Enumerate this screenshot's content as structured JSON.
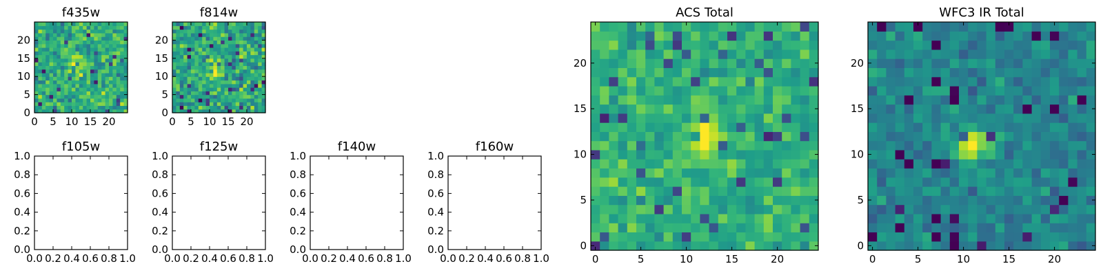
{
  "chart_data": [
    {
      "type": "heatmap",
      "title": "f435w",
      "xlim": [
        0,
        25
      ],
      "ylim": [
        0,
        25
      ],
      "xticks": [
        0,
        5,
        10,
        15,
        20
      ],
      "yticks": [
        0,
        5,
        10,
        15,
        20
      ],
      "colormap": "viridis",
      "grid_size": 25
    },
    {
      "type": "heatmap",
      "title": "f814w",
      "xlim": [
        0,
        25
      ],
      "ylim": [
        0,
        25
      ],
      "xticks": [
        0,
        5,
        10,
        15,
        20
      ],
      "yticks": [
        0,
        5,
        10,
        15,
        20
      ],
      "colormap": "viridis",
      "grid_size": 25
    },
    {
      "type": "line",
      "title": "f105w",
      "xlim": [
        0,
        1
      ],
      "ylim": [
        0,
        1
      ],
      "xticks": [
        "0.0",
        "0.2",
        "0.4",
        "0.6",
        "0.8",
        "1.0"
      ],
      "yticks": [
        "0.0",
        "0.2",
        "0.4",
        "0.6",
        "0.8",
        "1.0"
      ],
      "series": []
    },
    {
      "type": "line",
      "title": "f125w",
      "xlim": [
        0,
        1
      ],
      "ylim": [
        0,
        1
      ],
      "xticks": [
        "0.0",
        "0.2",
        "0.4",
        "0.6",
        "0.8",
        "1.0"
      ],
      "yticks": [
        "0.0",
        "0.2",
        "0.4",
        "0.6",
        "0.8",
        "1.0"
      ],
      "series": []
    },
    {
      "type": "line",
      "title": "f140w",
      "xlim": [
        0,
        1
      ],
      "ylim": [
        0,
        1
      ],
      "xticks": [
        "0.0",
        "0.2",
        "0.4",
        "0.6",
        "0.8",
        "1.0"
      ],
      "yticks": [
        "0.0",
        "0.2",
        "0.4",
        "0.6",
        "0.8",
        "1.0"
      ],
      "series": []
    },
    {
      "type": "line",
      "title": "f160w",
      "xlim": [
        0,
        1
      ],
      "ylim": [
        0,
        1
      ],
      "xticks": [
        "0.0",
        "0.2",
        "0.4",
        "0.6",
        "0.8",
        "1.0"
      ],
      "yticks": [
        "0.0",
        "0.2",
        "0.4",
        "0.6",
        "0.8",
        "1.0"
      ],
      "series": []
    },
    {
      "type": "heatmap",
      "title": "ACS Total",
      "xlim": [
        -0.5,
        24.5
      ],
      "ylim": [
        -0.5,
        24.5
      ],
      "xticks": [
        0,
        5,
        10,
        15,
        20
      ],
      "yticks": [
        0,
        5,
        10,
        15,
        20
      ],
      "colormap": "viridis",
      "grid_size": 25
    },
    {
      "type": "heatmap",
      "title": "WFC3 IR Total",
      "xlim": [
        -0.5,
        24.5
      ],
      "ylim": [
        -0.5,
        24.5
      ],
      "xticks": [
        0,
        5,
        10,
        15,
        20
      ],
      "yticks": [
        0,
        5,
        10,
        15,
        20
      ],
      "colormap": "viridis",
      "grid_size": 25
    }
  ]
}
